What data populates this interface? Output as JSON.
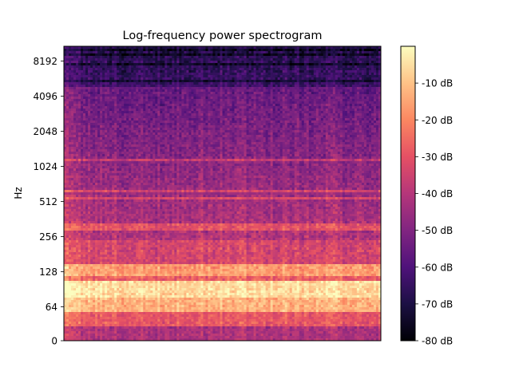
{
  "chart_data": {
    "type": "heatmap",
    "title": "Log-frequency power spectrogram",
    "xlabel": "",
    "ylabel": "Hz",
    "y_scale": "log2",
    "y_ticks": [
      "0",
      "64",
      "128",
      "256",
      "512",
      "1024",
      "2048",
      "4096",
      "8192"
    ],
    "y_tick_values": [
      0,
      64,
      128,
      256,
      512,
      1024,
      2048,
      4096,
      8192
    ],
    "ylim": [
      0,
      11025
    ],
    "x_ticks": [],
    "colorbar": {
      "label": "",
      "colormap": "magma",
      "vmin": -80,
      "vmax": 0,
      "ticks": [
        "-10 dB",
        "-20 dB",
        "-30 dB",
        "-40 dB",
        "-50 dB",
        "-60 dB",
        "-70 dB",
        "-80 dB"
      ],
      "tick_values": [
        -10,
        -20,
        -30,
        -40,
        -50,
        -60,
        -70,
        -80
      ]
    },
    "colormap_stops": [
      "#000004",
      "#1c1044",
      "#4f127b",
      "#812581",
      "#b5367a",
      "#e55064",
      "#fb8761",
      "#fec287",
      "#fcfdbf"
    ],
    "grid": false
  }
}
